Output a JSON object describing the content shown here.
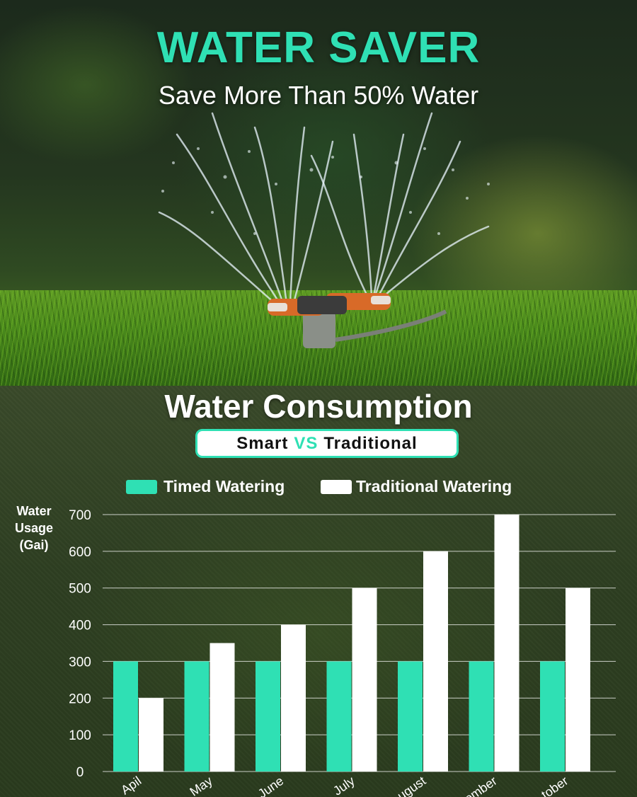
{
  "hero": {
    "title": "WATER SAVER",
    "subtitle": "Save More Than 50% Water"
  },
  "chart_data": {
    "type": "bar",
    "title": "Water Consumption",
    "subtitle": {
      "left": "Smart",
      "middle": "VS",
      "right": "Traditional"
    },
    "ylabel_lines": [
      "Water",
      "Usage",
      "(Gai)"
    ],
    "categories": [
      "April",
      "May",
      "June",
      "July",
      "August",
      "September",
      "October"
    ],
    "visible_tick_labels": [
      "Apil",
      "May",
      "June",
      "July",
      "ugust",
      "ember",
      "tober"
    ],
    "series": [
      {
        "name": "Timed Watering",
        "color": "#2fe0b4",
        "values": [
          300,
          300,
          300,
          300,
          300,
          300,
          300
        ]
      },
      {
        "name": "Traditional Watering",
        "color": "#ffffff",
        "values": [
          200,
          350,
          400,
          500,
          600,
          700,
          500
        ]
      }
    ],
    "ylim": [
      0,
      700
    ],
    "yticks": [
      0,
      100,
      200,
      300,
      400,
      500,
      600,
      700
    ],
    "grid": true,
    "legend": "top"
  }
}
